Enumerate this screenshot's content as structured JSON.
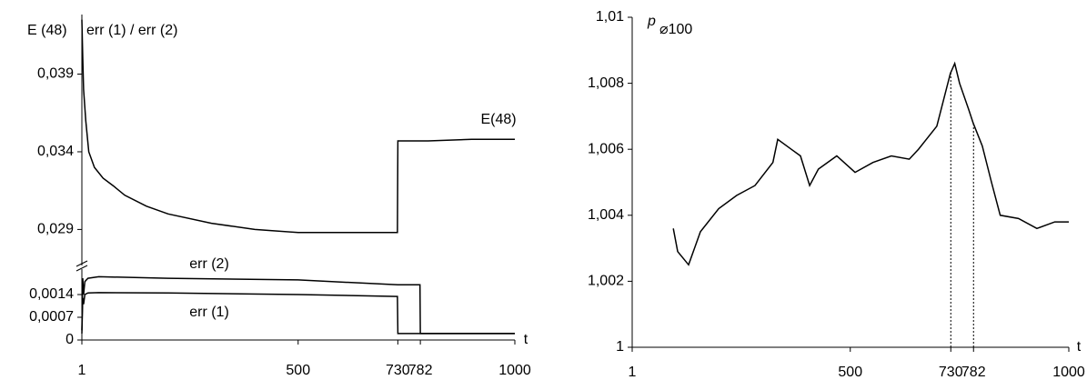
{
  "chart_data": [
    {
      "type": "line",
      "ylabel": "E (48)",
      "xlim": [
        1,
        1000
      ],
      "ylim": [
        0.0268,
        0.0426
      ],
      "yticks": [
        {
          "value": 0.029,
          "label": "0,029"
        },
        {
          "value": 0.034,
          "label": "0,034"
        },
        {
          "value": 0.039,
          "label": "0,039"
        }
      ],
      "series": [
        {
          "name": "E(48)",
          "color": "#000000",
          "x": [
            1,
            3,
            5,
            10,
            17,
            30,
            50,
            74,
            100,
            150,
            200,
            300,
            400,
            500,
            600,
            729,
            730,
            800,
            900,
            1000
          ],
          "values": [
            0.0425,
            0.04,
            0.038,
            0.036,
            0.034,
            0.033,
            0.0323,
            0.0318,
            0.0312,
            0.0305,
            0.03,
            0.0294,
            0.029,
            0.0288,
            0.0288,
            0.0288,
            0.0347,
            0.0347,
            0.0348,
            0.0348
          ]
        }
      ]
    },
    {
      "type": "line",
      "ylabel": "err (1) / err (2)",
      "xlabel": "t",
      "xlim": [
        1,
        1000
      ],
      "xticks": [
        1,
        500,
        730,
        782,
        1000
      ],
      "ylim": [
        0,
        0.0021
      ],
      "yticks": [
        0,
        {
          "value": 0.0007,
          "label": "0,0007"
        },
        {
          "value": 0.0014,
          "label": "0,0014"
        }
      ],
      "series": [
        {
          "name": "err (2)",
          "color": "#000000",
          "x": [
            1,
            3,
            5,
            8,
            15,
            40,
            200,
            500,
            730,
            781,
            782,
            1000
          ],
          "values": [
            0.0003,
            0.0019,
            0.0014,
            0.0018,
            0.0019,
            0.00195,
            0.0019,
            0.00185,
            0.0017,
            0.0017,
            0.0002,
            0.0002
          ]
        },
        {
          "name": "err (1)",
          "color": "#000000",
          "x": [
            1,
            3,
            5,
            8,
            15,
            40,
            200,
            500,
            729,
            730,
            1000
          ],
          "values": [
            0.0002,
            0.0013,
            0.0011,
            0.0014,
            0.00145,
            0.00146,
            0.00145,
            0.0014,
            0.00134,
            0.0002,
            0.0002
          ]
        }
      ]
    },
    {
      "type": "line",
      "ylabel": "p",
      "ylabel_sub": "⌀100",
      "xlabel": "t",
      "xlim": [
        1,
        1000
      ],
      "xticks": [
        1,
        500,
        730,
        782,
        1000
      ],
      "ylim": [
        1,
        1.01
      ],
      "yticks": [
        1,
        {
          "value": 1.002,
          "label": "1,002"
        },
        {
          "value": 1.004,
          "label": "1,004"
        },
        {
          "value": 1.006,
          "label": "1,006"
        },
        {
          "value": 1.008,
          "label": "1,008"
        },
        {
          "value": 1.01,
          "label": "1,01"
        }
      ],
      "vlines": [
        730,
        782
      ],
      "series": [
        {
          "name": "p",
          "color": "#000000",
          "x": [
            95,
            105,
            130,
            157,
            199,
            240,
            282,
            323,
            334,
            365,
            386,
            407,
            427,
            469,
            511,
            552,
            594,
            635,
            656,
            698,
            729,
            739,
            750,
            771,
            781,
            802,
            823,
            843,
            885,
            927,
            968,
            1000
          ],
          "values": [
            1.0036,
            1.0029,
            1.0025,
            1.0035,
            1.0042,
            1.0046,
            1.0049,
            1.0056,
            1.0063,
            1.006,
            1.0058,
            1.0049,
            1.0054,
            1.0058,
            1.0053,
            1.0056,
            1.0058,
            1.0057,
            1.006,
            1.0067,
            1.0083,
            1.0086,
            1.008,
            1.0072,
            1.0068,
            1.0061,
            1.005,
            1.004,
            1.0039,
            1.0036,
            1.0038,
            1.0038
          ]
        }
      ]
    }
  ]
}
